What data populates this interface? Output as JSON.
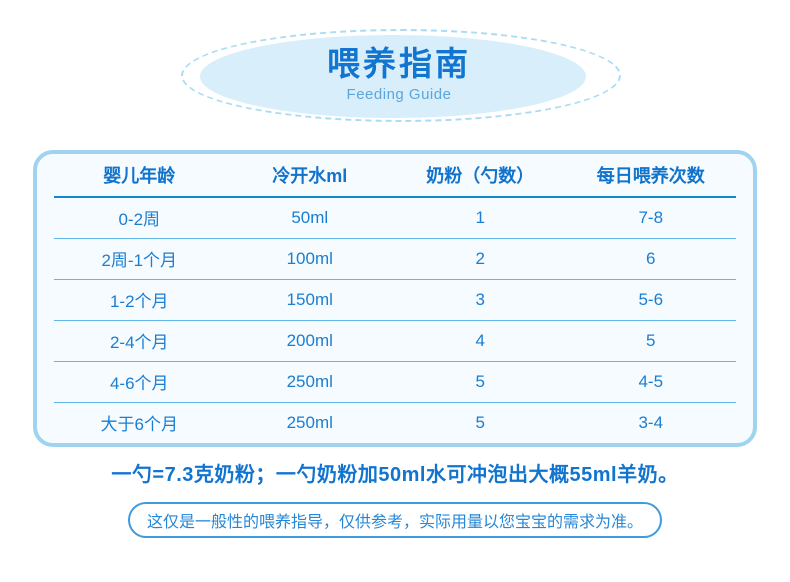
{
  "header": {
    "title": "喂养指南",
    "subtitle": "Feeding Guide"
  },
  "table": {
    "columns": [
      "婴儿年龄",
      "冷开水ml",
      "奶粉（勺数）",
      "每日喂养次数"
    ],
    "rows": [
      [
        "0-2周",
        "50ml",
        "1",
        "7-8"
      ],
      [
        "2周-1个月",
        "100ml",
        "2",
        "6"
      ],
      [
        "1-2个月",
        "150ml",
        "3",
        "5-6"
      ],
      [
        "2-4个月",
        "200ml",
        "4",
        "5"
      ],
      [
        "4-6个月",
        "250ml",
        "5",
        "4-5"
      ],
      [
        "大于6个月",
        "250ml",
        "5",
        "3-4"
      ]
    ]
  },
  "footer": {
    "statement": "一勺=7.3克奶粉；一勺奶粉加50ml水可冲泡出大概55ml羊奶。",
    "note": "这仅是一般性的喂养指导，仅供参考，实际用量以您宝宝的需求为准。"
  },
  "colors": {
    "accent_blue": "#1276d1",
    "subtitle_blue": "#5ba6dd",
    "ellipse_fill": "#d8eefa",
    "ellipse_dash_border": "#a9dcf3",
    "table_border": "#9fd3f0",
    "table_background": "#f5fbfe",
    "header_divider": "#1387ce",
    "row_divider": "#5fb6e7",
    "cell_text": "#1a7ed2",
    "note_border": "#3e9bdf",
    "note_text": "#2687d7"
  }
}
